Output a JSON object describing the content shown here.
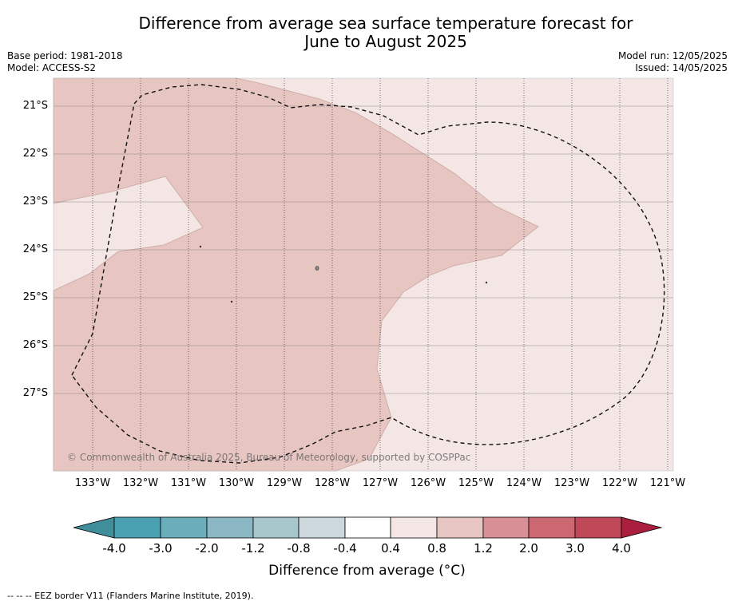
{
  "title": {
    "line1": "Difference from average sea surface temperature forecast for",
    "line2": "June to August 2025"
  },
  "meta": {
    "base_period": "Base period: 1981-2018",
    "model": "Model: ACCESS-S2",
    "model_run": "Model run: 12/05/2025",
    "issued": "Issued: 14/05/2025"
  },
  "map": {
    "lat_labels": [
      "21°S",
      "22°S",
      "23°S",
      "24°S",
      "25°S",
      "26°S",
      "27°S"
    ],
    "lon_labels": [
      "133°W",
      "132°W",
      "131°W",
      "130°W",
      "129°W",
      "128°W",
      "127°W",
      "126°W",
      "125°W",
      "124°W",
      "123°W",
      "122°W",
      "121°W"
    ],
    "copyright": "© Commonwealth of Australia 2025, Bureau of Meteorology, supported by COSPPac",
    "colors": {
      "anomaly_0_4_to_0_8": "#f3e6e5",
      "anomaly_0_8_to_1_2": "#e7c6c2"
    }
  },
  "colorbar": {
    "ticks": [
      "-4.0",
      "-3.0",
      "-2.0",
      "-1.2",
      "-0.8",
      "-0.4",
      "0.4",
      "0.8",
      "1.2",
      "2.0",
      "3.0",
      "4.0"
    ],
    "colors": [
      "#3f8e9a",
      "#4aa1b1",
      "#6aaebb",
      "#8ab7c3",
      "#a8c7cd",
      "#cdd8dc",
      "#ffffff",
      "#f3e6e5",
      "#e7c6c2",
      "#d88f96",
      "#cc6872",
      "#bf4859",
      "#aa1f3d"
    ],
    "label": "Difference from average (°C)"
  },
  "footnote": "--  --  -- EEZ border V11 (Flanders Marine Institute, 2019)."
}
